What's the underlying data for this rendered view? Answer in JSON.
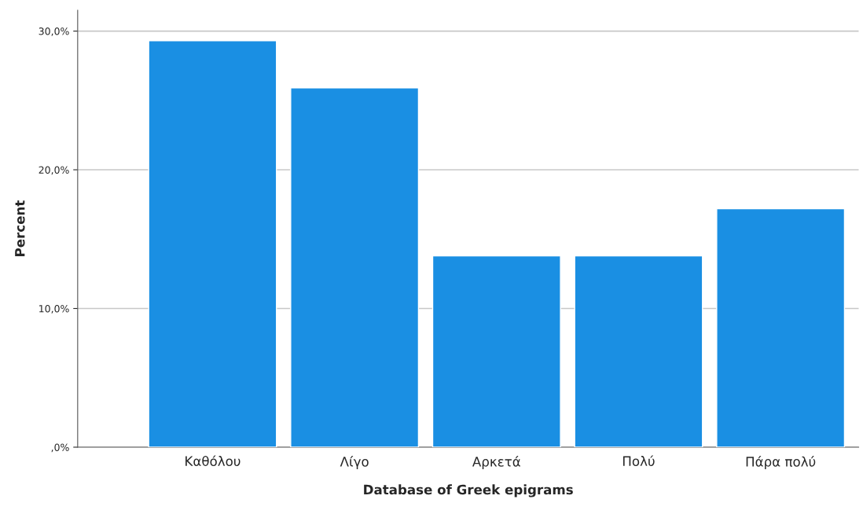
{
  "chart_data": {
    "type": "bar",
    "xlabel": "Database of Greek epigrams",
    "ylabel": "Percent",
    "categories": [
      "Καθόλου",
      "Λίγο",
      "Αρκετά",
      "Πολύ",
      "Πάρα πολύ"
    ],
    "values": [
      29.3,
      25.9,
      13.8,
      13.8,
      17.2
    ],
    "color": "#1a8fe3",
    "ylim": [
      0,
      31.5
    ],
    "yticks": [
      {
        "value": 0,
        "label": ",0%"
      },
      {
        "value": 10,
        "label": "10,0%"
      },
      {
        "value": 20,
        "label": "20,0%"
      },
      {
        "value": 30,
        "label": "30,0%"
      }
    ],
    "grid": "y"
  }
}
